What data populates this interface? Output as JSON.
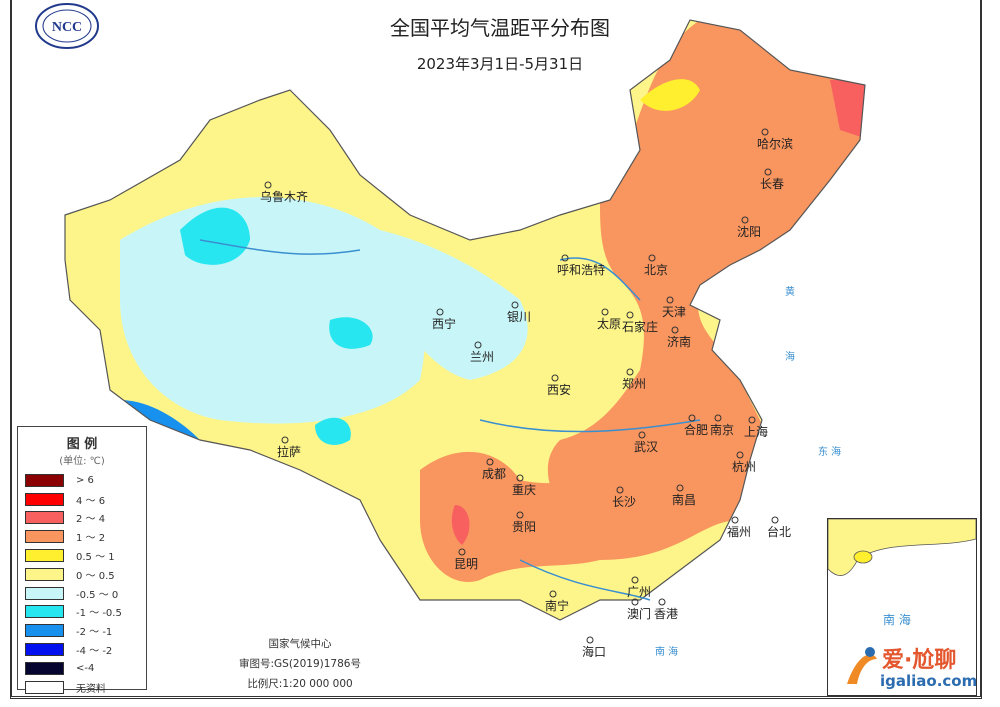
{
  "map": {
    "title": "全国平均气温距平分布图",
    "subtitle": "2023年3月1日-5月31日",
    "logo_text": "NCC",
    "cities": [
      "乌鲁木齐",
      "哈尔滨",
      "长春",
      "沈阳",
      "呼和浩特",
      "北京",
      "天津",
      "银川",
      "太原",
      "石家庄",
      "西宁",
      "兰州",
      "济南",
      "郑州",
      "西安",
      "南京",
      "合肥",
      "上海",
      "武汉",
      "杭州",
      "拉萨",
      "成都",
      "重庆",
      "长沙",
      "南昌",
      "贵阳",
      "福州",
      "台北",
      "昆明",
      "南宁",
      "广州",
      "澳门",
      "香港",
      "海口"
    ],
    "sea_labels": [
      "黄",
      "海",
      "东 海",
      "南 海"
    ],
    "inset_label": "南 海"
  },
  "legend": {
    "title": "图 例",
    "unit": "(单位: ℃)",
    "items": [
      {
        "label": "> 6",
        "color": "#8b0000"
      },
      {
        "label": "4 ～ 6",
        "color": "#ff0000"
      },
      {
        "label": "2 ～ 4",
        "color": "#f86060"
      },
      {
        "label": "1 ～ 2",
        "color": "#f9955f"
      },
      {
        "label": "0.5 ～ 1",
        "color": "#ffef2e"
      },
      {
        "label": "0 ～ 0.5",
        "color": "#fdf58a"
      },
      {
        "label": "-0.5 ～ 0",
        "color": "#c8f6f8"
      },
      {
        "label": "-1 ～ -0.5",
        "color": "#27e6f0"
      },
      {
        "label": "-2 ～ -1",
        "color": "#1890ee"
      },
      {
        "label": "-4 ～ -2",
        "color": "#0010ee"
      },
      {
        "label": "<-4",
        "color": "#050530"
      },
      {
        "label": "无资料",
        "color": "#ffffff"
      }
    ]
  },
  "footer": {
    "agency": "国家气候中心",
    "approval": "审图号:GS(2019)1786号",
    "scale": "比例尺:1:20 000 000"
  },
  "watermark": {
    "text": "爱·尬聊",
    "url": "igaliao.com"
  }
}
